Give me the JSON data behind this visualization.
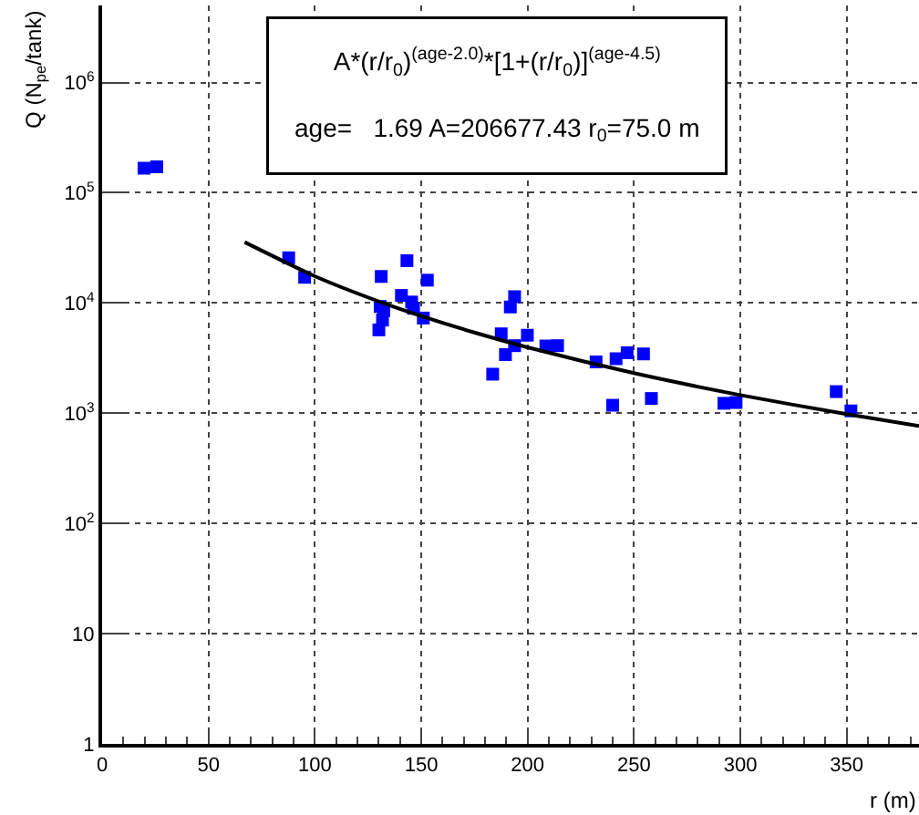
{
  "chart_data": {
    "type": "scatter",
    "xlabel": "r (m)",
    "ylabel": "Q (N$_{pe}$/tank)",
    "xlim": [
      0,
      384
    ],
    "xticks": [
      0,
      50,
      100,
      150,
      200,
      250,
      300,
      350
    ],
    "ylim": [
      1,
      5000000
    ],
    "log": "y",
    "yticks": [
      1,
      10,
      {
        "value": 100,
        "label": "10$^{2}$"
      },
      {
        "value": 1000,
        "label": "10$^{3}$"
      },
      {
        "value": 10000,
        "label": "10$^{4}$"
      },
      {
        "value": 100000,
        "label": "10$^{5}$"
      },
      {
        "value": 1000000,
        "label": "10$^{6}$"
      }
    ],
    "grid": true,
    "legend": false,
    "series": [
      {
        "color": "#0000ff",
        "marker": "square",
        "x": [
          19.7,
          25.7,
          87.7,
          95.2,
          131.2,
          143.3,
          152.9,
          130.7,
          132.4,
          131.8,
          130.1,
          140.7,
          145.5,
          146.4,
          151,
          183.6,
          187.6,
          189.6,
          191.9,
          193.9,
          193.9,
          199.9,
          208.6,
          214.1,
          232.2,
          241.6,
          246.8,
          254.5,
          240,
          258.2,
          292.3,
          298,
          345.1,
          352
        ],
        "values": [
          167000,
          172000,
          25700,
          17100,
          17400,
          24200,
          16100,
          9300,
          8500,
          7000,
          5700,
          11700,
          10200,
          8950,
          7300,
          2260,
          5250,
          3400,
          9200,
          11400,
          4100,
          5100,
          4070,
          4100,
          2920,
          3120,
          3540,
          3450,
          1180,
          1360,
          1230,
          1250,
          1570,
          1050
        ]
      },
      {
        "type": "line",
        "color": "#000000",
        "marker": "none",
        "line_style": "solid",
        "x": [
          67,
          100,
          130,
          150,
          175,
          200,
          250,
          300,
          350,
          384
        ],
        "values": [
          35610,
          17480,
          10332,
          7610,
          5395,
          3960,
          2311,
          1461,
          980,
          767
        ]
      }
    ],
    "annotations": [
      "A*(r/r$_{0}$)$^{(age-2.0)}$*[1+(r/r$_{0}$)]$^{(age-4.5)}$",
      "age=   1.69 A=206677.43 r$_{0}$=75.0 m"
    ]
  }
}
